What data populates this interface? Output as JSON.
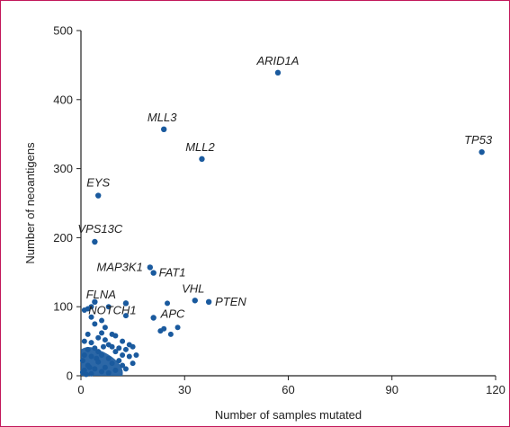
{
  "chart_data": {
    "type": "scatter",
    "xlabel": "Number of samples mutated",
    "ylabel": "Number of neoantigens",
    "xlim": [
      0,
      120
    ],
    "ylim": [
      0,
      500
    ],
    "x_ticks": [
      0,
      30,
      60,
      90,
      120
    ],
    "y_ticks": [
      0,
      100,
      200,
      300,
      400,
      500
    ],
    "grid": false,
    "marker_color": "#1a5a9e",
    "labeled_points": [
      {
        "label": "ARID1A",
        "x": 57,
        "y": 439
      },
      {
        "label": "TP53",
        "x": 116,
        "y": 324
      },
      {
        "label": "MLL3",
        "x": 24,
        "y": 357
      },
      {
        "label": "MLL2",
        "x": 35,
        "y": 314
      },
      {
        "label": "EYS",
        "x": 5,
        "y": 261
      },
      {
        "label": "VPS13C",
        "x": 4,
        "y": 194
      },
      {
        "label": "MAP3K1",
        "x": 20,
        "y": 157
      },
      {
        "label": "FAT1",
        "x": 21,
        "y": 149
      },
      {
        "label": "VHL",
        "x": 33,
        "y": 109
      },
      {
        "label": "PTEN",
        "x": 37,
        "y": 107
      },
      {
        "label": "FLNA",
        "x": 4,
        "y": 107
      },
      {
        "label": "NOTCH1",
        "x": 13,
        "y": 105
      },
      {
        "label": "APC",
        "x": 21,
        "y": 84
      }
    ],
    "other_points": [
      {
        "x": 1,
        "y": 95
      },
      {
        "x": 2,
        "y": 97
      },
      {
        "x": 3,
        "y": 100
      },
      {
        "x": 8,
        "y": 100
      },
      {
        "x": 13,
        "y": 87
      },
      {
        "x": 25,
        "y": 105
      },
      {
        "x": 3,
        "y": 85
      },
      {
        "x": 6,
        "y": 80
      },
      {
        "x": 9,
        "y": 60
      },
      {
        "x": 10,
        "y": 58
      },
      {
        "x": 12,
        "y": 50
      },
      {
        "x": 14,
        "y": 45
      },
      {
        "x": 15,
        "y": 42
      },
      {
        "x": 23,
        "y": 65
      },
      {
        "x": 24,
        "y": 68
      },
      {
        "x": 26,
        "y": 60
      },
      {
        "x": 28,
        "y": 70
      },
      {
        "x": 11,
        "y": 40
      },
      {
        "x": 7,
        "y": 70
      },
      {
        "x": 4,
        "y": 75
      },
      {
        "x": 2,
        "y": 60
      },
      {
        "x": 5,
        "y": 55
      },
      {
        "x": 8,
        "y": 45
      },
      {
        "x": 6,
        "y": 62
      },
      {
        "x": 1,
        "y": 50
      },
      {
        "x": 3,
        "y": 48
      },
      {
        "x": 10,
        "y": 35
      },
      {
        "x": 12,
        "y": 30
      },
      {
        "x": 13,
        "y": 38
      },
      {
        "x": 9,
        "y": 42
      },
      {
        "x": 7,
        "y": 52
      },
      {
        "x": 4,
        "y": 40
      },
      {
        "x": 5,
        "y": 35
      },
      {
        "x": 2,
        "y": 38
      },
      {
        "x": 1,
        "y": 30
      },
      {
        "x": 0.5,
        "y": 22
      },
      {
        "x": 3,
        "y": 28
      },
      {
        "x": 6,
        "y": 30
      },
      {
        "x": 8,
        "y": 25
      },
      {
        "x": 11,
        "y": 22
      },
      {
        "x": 14,
        "y": 28
      },
      {
        "x": 16,
        "y": 30
      },
      {
        "x": 9,
        "y": 18
      },
      {
        "x": 12,
        "y": 15
      },
      {
        "x": 7,
        "y": 12
      },
      {
        "x": 5,
        "y": 20
      },
      {
        "x": 4,
        "y": 10
      },
      {
        "x": 2,
        "y": 15
      },
      {
        "x": 1,
        "y": 8
      },
      {
        "x": 0.5,
        "y": 5
      },
      {
        "x": 3,
        "y": 3
      },
      {
        "x": 6,
        "y": 6
      },
      {
        "x": 10,
        "y": 8
      },
      {
        "x": 13,
        "y": 10
      },
      {
        "x": 15,
        "y": 18
      },
      {
        "x": 8,
        "y": 4
      },
      {
        "x": 1.5,
        "y": 2
      },
      {
        "x": 2.5,
        "y": 12
      },
      {
        "x": 4.5,
        "y": 25
      },
      {
        "x": 6.5,
        "y": 42
      }
    ]
  }
}
